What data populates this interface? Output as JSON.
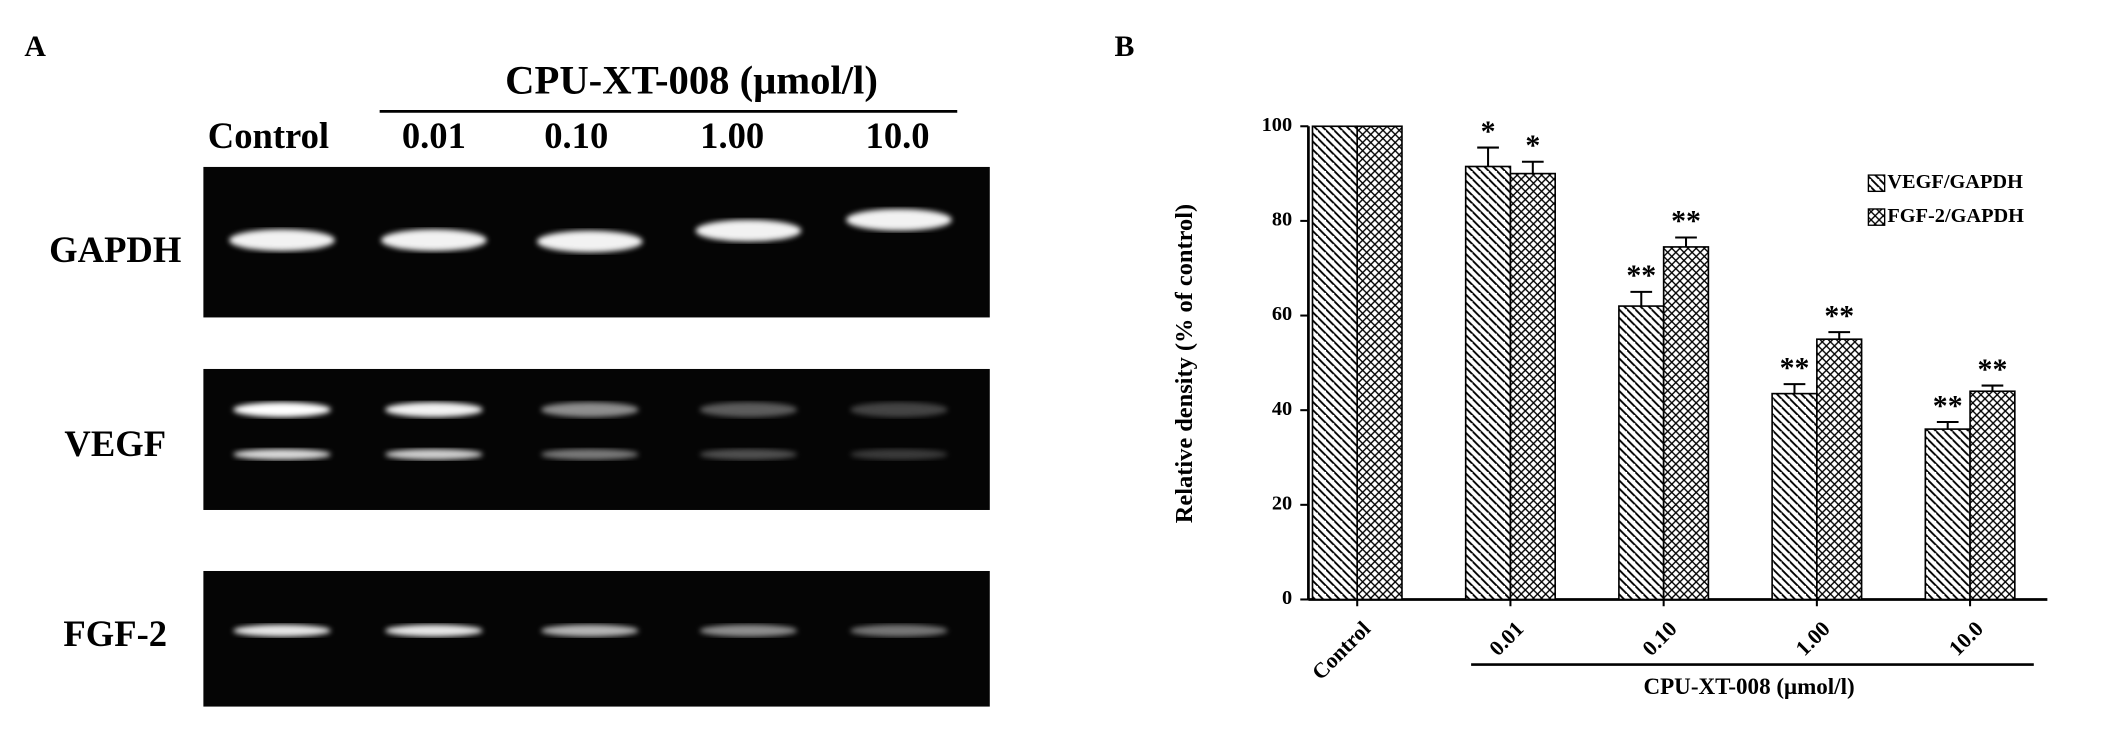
{
  "panel_labels": [
    "A",
    "B"
  ],
  "gel": {
    "header": "CPU-XT-008 (μmol/l)",
    "lanes": [
      "Control",
      "0.01",
      "0.10",
      "1.00",
      "10.0"
    ],
    "rows": [
      "GAPDH",
      "VEGF",
      "FGF-2"
    ]
  },
  "chart_data": {
    "type": "bar",
    "ylabel": "Relative density (% of control)",
    "xlabel": "CPU-XT-008 (μmol/l)",
    "categories": [
      "Control",
      "0.01",
      "0.10",
      "1.00",
      "10.0"
    ],
    "series": [
      {
        "name": "VEGF/GAPDH",
        "color": "#000000",
        "pattern": "hatch",
        "values": [
          100,
          91.5,
          62,
          43.5,
          36
        ],
        "errors": [
          0,
          4,
          3,
          2,
          1.5
        ],
        "annotations": [
          null,
          "*",
          "**",
          "**",
          "**"
        ]
      },
      {
        "name": "FGF-2/GAPDH",
        "color": "#000000",
        "pattern": "crosshatch",
        "values": [
          100,
          90,
          74.5,
          55,
          44
        ],
        "errors": [
          0,
          2.5,
          2,
          1.5,
          1.2
        ],
        "annotations": [
          null,
          "*",
          "**",
          "**",
          "**"
        ]
      }
    ],
    "ylim": [
      0,
      100
    ],
    "yticks": [
      0,
      20,
      40,
      60,
      80,
      100
    ],
    "grid": false,
    "legend": "upper right"
  }
}
